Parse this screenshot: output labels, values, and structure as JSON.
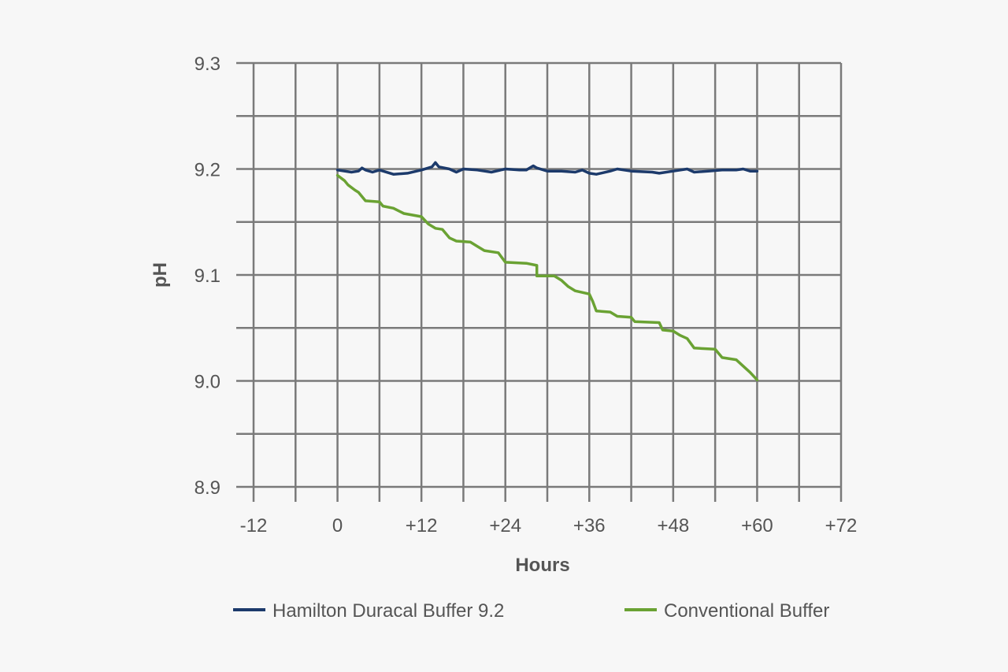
{
  "chart_data": {
    "type": "line",
    "title": "",
    "xlabel": "Hours",
    "ylabel": "pH",
    "xlim": [
      -12,
      72
    ],
    "ylim": [
      8.9,
      9.3
    ],
    "grid": true,
    "x_tick_values": [
      -12,
      0,
      12,
      24,
      36,
      48,
      60,
      72
    ],
    "x_tick_labels": [
      "-12",
      "0",
      "+12",
      "+24",
      "+36",
      "+48",
      "+60",
      "+72"
    ],
    "y_tick_values": [
      8.9,
      9.0,
      9.1,
      9.2,
      9.3
    ],
    "y_tick_labels": [
      "8.9",
      "9.0",
      "9.1",
      "9.2",
      "9.3"
    ],
    "legend_position": "bottom",
    "series": [
      {
        "name": "Hamilton Duracal Buffer 9.2",
        "color": "#1c3a6b",
        "points": [
          [
            0,
            9.199
          ],
          [
            2,
            9.197
          ],
          [
            3,
            9.198
          ],
          [
            3.5,
            9.201
          ],
          [
            4,
            9.199
          ],
          [
            5,
            9.197
          ],
          [
            6,
            9.199
          ],
          [
            8,
            9.195
          ],
          [
            10,
            9.196
          ],
          [
            12,
            9.199
          ],
          [
            13.5,
            9.202
          ],
          [
            14,
            9.206
          ],
          [
            14.5,
            9.202
          ],
          [
            16,
            9.2
          ],
          [
            17,
            9.197
          ],
          [
            18,
            9.2
          ],
          [
            20,
            9.199
          ],
          [
            22,
            9.197
          ],
          [
            24,
            9.2
          ],
          [
            26,
            9.199
          ],
          [
            27,
            9.199
          ],
          [
            28,
            9.203
          ],
          [
            28.5,
            9.201
          ],
          [
            30,
            9.198
          ],
          [
            32,
            9.198
          ],
          [
            34,
            9.197
          ],
          [
            35,
            9.199
          ],
          [
            36,
            9.196
          ],
          [
            37,
            9.195
          ],
          [
            39,
            9.198
          ],
          [
            40,
            9.2
          ],
          [
            42,
            9.198
          ],
          [
            45,
            9.197
          ],
          [
            46,
            9.196
          ],
          [
            48,
            9.198
          ],
          [
            50,
            9.2
          ],
          [
            51,
            9.197
          ],
          [
            53,
            9.198
          ],
          [
            55,
            9.199
          ],
          [
            57,
            9.199
          ],
          [
            58,
            9.2
          ],
          [
            59,
            9.198
          ],
          [
            60,
            9.198
          ]
        ]
      },
      {
        "name": "Conventional Buffer",
        "color": "#6aa233",
        "points": [
          [
            0,
            9.194
          ],
          [
            1,
            9.189
          ],
          [
            1.5,
            9.185
          ],
          [
            2.5,
            9.18
          ],
          [
            3,
            9.178
          ],
          [
            4,
            9.17
          ],
          [
            6,
            9.169
          ],
          [
            6.5,
            9.165
          ],
          [
            8,
            9.163
          ],
          [
            9.5,
            9.158
          ],
          [
            12,
            9.155
          ],
          [
            13,
            9.148
          ],
          [
            14,
            9.144
          ],
          [
            15,
            9.143
          ],
          [
            16,
            9.135
          ],
          [
            17,
            9.132
          ],
          [
            19,
            9.131
          ],
          [
            20,
            9.127
          ],
          [
            21,
            9.123
          ],
          [
            23,
            9.121
          ],
          [
            24,
            9.112
          ],
          [
            27,
            9.111
          ],
          [
            28.5,
            9.109
          ],
          [
            28.5,
            9.099
          ],
          [
            31,
            9.099
          ],
          [
            32,
            9.095
          ],
          [
            33,
            9.089
          ],
          [
            34,
            9.085
          ],
          [
            36,
            9.082
          ],
          [
            36.5,
            9.075
          ],
          [
            37,
            9.066
          ],
          [
            39,
            9.065
          ],
          [
            40,
            9.061
          ],
          [
            42,
            9.06
          ],
          [
            42.5,
            9.056
          ],
          [
            46,
            9.055
          ],
          [
            46.5,
            9.048
          ],
          [
            48,
            9.047
          ],
          [
            49,
            9.043
          ],
          [
            50,
            9.04
          ],
          [
            51,
            9.031
          ],
          [
            54,
            9.03
          ],
          [
            55,
            9.022
          ],
          [
            57,
            9.02
          ],
          [
            58,
            9.014
          ],
          [
            59,
            9.008
          ],
          [
            60,
            9.001
          ]
        ]
      }
    ]
  }
}
